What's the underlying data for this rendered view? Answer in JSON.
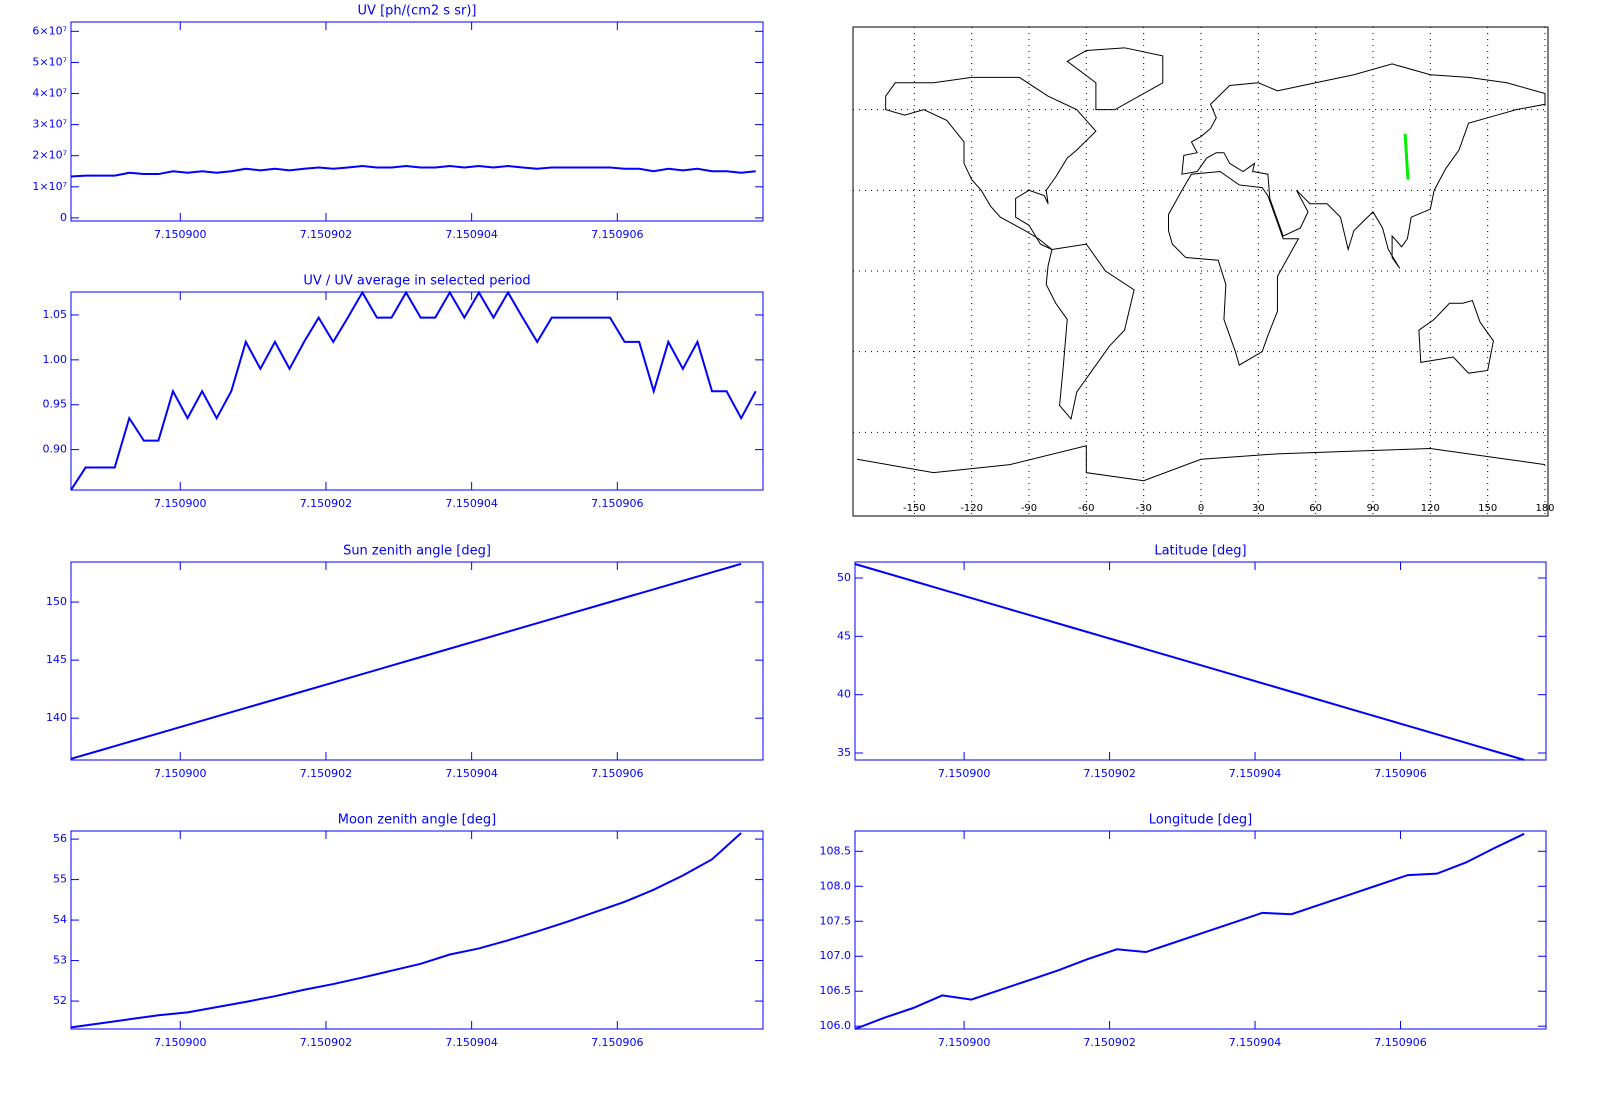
{
  "chart_data": [
    {
      "type": "line",
      "title": "UV [ph/(cm2 s sr)]",
      "color": "#0000ff",
      "step": true,
      "x": [
        7.1508985,
        7.1508987,
        7.1508989,
        7.1508991,
        7.1508993,
        7.1508995,
        7.1508997,
        7.1508999,
        7.1509001,
        7.1509003,
        7.1509005,
        7.1509007,
        7.1509009,
        7.1509011,
        7.1509013,
        7.1509015,
        7.1509017,
        7.1509019,
        7.1509021,
        7.1509023,
        7.1509025,
        7.1509027,
        7.1509029,
        7.1509031,
        7.1509033,
        7.1509035,
        7.1509037,
        7.1509039,
        7.1509041,
        7.1509043,
        7.1509045,
        7.1509047,
        7.1509049,
        7.1509051,
        7.1509053,
        7.1509055,
        7.1509057,
        7.1509059,
        7.1509061,
        7.1509063,
        7.1509065,
        7.1509067,
        7.1509069,
        7.1509071,
        7.1509073,
        7.1509075,
        7.1509077,
        7.1509079
      ],
      "values": [
        13300000,
        13600000,
        13600000,
        13600000,
        14500000,
        14100000,
        14100000,
        15000000,
        14500000,
        15000000,
        14500000,
        15000000,
        15800000,
        15300000,
        15800000,
        15300000,
        15800000,
        16200000,
        15800000,
        16200000,
        16700000,
        16200000,
        16200000,
        16700000,
        16200000,
        16200000,
        16700000,
        16200000,
        16700000,
        16200000,
        16700000,
        16200000,
        15800000,
        16200000,
        16200000,
        16200000,
        16200000,
        16200000,
        15800000,
        15800000,
        15000000,
        15800000,
        15300000,
        15800000,
        15000000,
        15000000,
        14500000,
        15000000
      ],
      "xlim": [
        7.1508985,
        7.150908
      ],
      "xticks": [
        {
          "value": 7.1509,
          "label": "7.150900"
        },
        {
          "value": 7.150902,
          "label": "7.150902"
        },
        {
          "value": 7.150904,
          "label": "7.150904"
        },
        {
          "value": 7.150906,
          "label": "7.150906"
        }
      ],
      "ylim": [
        -1000000,
        63000000
      ],
      "yticks": [
        0,
        {
          "value": 10000000,
          "label": "1×10⁷"
        },
        {
          "value": 20000000,
          "label": "2×10⁷"
        },
        {
          "value": 30000000,
          "label": "3×10⁷"
        },
        {
          "value": 40000000,
          "label": "4×10⁷"
        },
        {
          "value": 50000000,
          "label": "5×10⁷"
        },
        {
          "value": 60000000,
          "label": "6×10⁷"
        }
      ]
    },
    {
      "type": "line",
      "title": "UV / UV average in selected period",
      "color": "#0000ff",
      "x": [
        7.1508985,
        7.1508987,
        7.1508989,
        7.1508991,
        7.1508993,
        7.1508995,
        7.1508997,
        7.1508999,
        7.1509001,
        7.1509003,
        7.1509005,
        7.1509007,
        7.1509009,
        7.1509011,
        7.1509013,
        7.1509015,
        7.1509017,
        7.1509019,
        7.1509021,
        7.1509023,
        7.1509025,
        7.1509027,
        7.1509029,
        7.1509031,
        7.1509033,
        7.1509035,
        7.1509037,
        7.1509039,
        7.1509041,
        7.1509043,
        7.1509045,
        7.1509047,
        7.1509049,
        7.1509051,
        7.1509053,
        7.1509055,
        7.1509057,
        7.1509059,
        7.1509061,
        7.1509063,
        7.1509065,
        7.1509067,
        7.1509069,
        7.1509071,
        7.1509073,
        7.1509075,
        7.1509077,
        7.1509079
      ],
      "values": [
        0.855,
        0.88,
        0.88,
        0.88,
        0.935,
        0.91,
        0.91,
        0.965,
        0.935,
        0.965,
        0.935,
        0.965,
        1.02,
        0.99,
        1.02,
        0.99,
        1.02,
        1.047,
        1.02,
        1.047,
        1.075,
        1.047,
        1.047,
        1.075,
        1.047,
        1.047,
        1.075,
        1.047,
        1.075,
        1.047,
        1.075,
        1.047,
        1.02,
        1.047,
        1.047,
        1.047,
        1.047,
        1.047,
        1.02,
        1.02,
        0.965,
        1.02,
        0.99,
        1.02,
        0.965,
        0.965,
        0.935,
        0.965
      ],
      "xlim": [
        7.1508985,
        7.150908
      ],
      "xticks": [
        {
          "value": 7.1509,
          "label": "7.150900"
        },
        {
          "value": 7.150902,
          "label": "7.150902"
        },
        {
          "value": 7.150904,
          "label": "7.150904"
        },
        {
          "value": 7.150906,
          "label": "7.150906"
        }
      ],
      "ylim": [
        0.855,
        1.0756
      ],
      "yticks": [
        {
          "value": 0.9,
          "label": "0.90"
        },
        {
          "value": 0.95,
          "label": "0.95"
        },
        {
          "value": 1,
          "label": "1.00"
        },
        {
          "value": 1.05,
          "label": "1.05"
        }
      ]
    },
    {
      "type": "map",
      "color": "#00ee00",
      "grid": true,
      "x": [
        106.8,
        107.1,
        107.4,
        107.7,
        108.0,
        108.4
      ],
      "values": [
        51,
        47.6,
        44.2,
        40.8,
        37.4,
        34
      ],
      "xlim": [
        -180,
        180
      ],
      "ylim": [
        -90,
        90
      ],
      "xticks": [
        -150,
        -120,
        -90,
        -60,
        -30,
        0,
        30,
        60,
        90,
        120,
        150,
        180
      ],
      "ygrid": [
        -60,
        -30,
        0,
        30,
        60
      ]
    },
    {
      "type": "line",
      "title": "Sun zenith angle [deg]",
      "color": "#0000ff",
      "x": [
        7.1508985,
        7.1508989,
        7.1508993,
        7.1508997,
        7.1509001,
        7.1509005,
        7.1509009,
        7.1509013,
        7.1509017,
        7.1509021,
        7.1509025,
        7.1509029,
        7.1509033,
        7.1509037,
        7.1509041,
        7.1509045,
        7.1509049,
        7.1509053,
        7.1509057,
        7.1509061,
        7.1509065,
        7.1509069,
        7.1509073,
        7.1509077
      ],
      "values": [
        136.5,
        137.23,
        137.96,
        138.69,
        139.42,
        140.15,
        140.88,
        141.61,
        142.34,
        143.07,
        143.8,
        144.53,
        145.26,
        145.99,
        146.72,
        147.45,
        148.18,
        148.91,
        149.64,
        150.37,
        151.1,
        151.83,
        152.56,
        153.29
      ],
      "xlim": [
        7.1508985,
        7.150908
      ],
      "xticks": [
        {
          "value": 7.1509,
          "label": "7.150900"
        },
        {
          "value": 7.150902,
          "label": "7.150902"
        },
        {
          "value": 7.150904,
          "label": "7.150904"
        },
        {
          "value": 7.150906,
          "label": "7.150906"
        }
      ],
      "ylim": [
        136.4,
        153.45
      ],
      "yticks": [
        140,
        145,
        150
      ]
    },
    {
      "type": "line",
      "title": "Latitude [deg]",
      "color": "#0000ff",
      "x": [
        7.1508985,
        7.1508989,
        7.1508993,
        7.1508997,
        7.1509001,
        7.1509005,
        7.1509009,
        7.1509013,
        7.1509017,
        7.1509021,
        7.1509025,
        7.1509029,
        7.1509033,
        7.1509037,
        7.1509041,
        7.1509045,
        7.1509049,
        7.1509053,
        7.1509057,
        7.1509061,
        7.1509065,
        7.1509069,
        7.1509073,
        7.1509077
      ],
      "values": [
        51.2,
        50.47,
        49.74,
        49.01,
        48.28,
        47.55,
        46.82,
        46.09,
        45.36,
        44.63,
        43.9,
        43.17,
        42.44,
        41.71,
        40.98,
        40.25,
        39.52,
        38.79,
        38.06,
        37.33,
        36.6,
        35.87,
        35.14,
        34.41
      ],
      "xlim": [
        7.1508985,
        7.150908
      ],
      "xticks": [
        {
          "value": 7.1509,
          "label": "7.150900"
        },
        {
          "value": 7.150902,
          "label": "7.150902"
        },
        {
          "value": 7.150904,
          "label": "7.150904"
        },
        {
          "value": 7.150906,
          "label": "7.150906"
        }
      ],
      "ylim": [
        34.4,
        51.37
      ],
      "yticks": [
        35,
        40,
        45,
        50
      ]
    },
    {
      "type": "line",
      "title": "Moon zenith angle [deg]",
      "color": "#0000ff",
      "x": [
        7.1508985,
        7.1508989,
        7.1508993,
        7.1508997,
        7.1509001,
        7.1509005,
        7.1509009,
        7.1509013,
        7.1509017,
        7.1509021,
        7.1509025,
        7.1509029,
        7.1509033,
        7.1509037,
        7.1509041,
        7.1509045,
        7.1509049,
        7.1509053,
        7.1509057,
        7.1509061,
        7.1509065,
        7.1509069,
        7.1509073,
        7.1509077
      ],
      "values": [
        51.35,
        51.45,
        51.55,
        51.65,
        51.72,
        51.85,
        51.98,
        52.12,
        52.28,
        52.42,
        52.58,
        52.75,
        52.92,
        53.15,
        53.3,
        53.5,
        53.72,
        53.95,
        54.2,
        54.45,
        54.75,
        55.1,
        55.5,
        56.15
      ],
      "xlim": [
        7.1508985,
        7.150908
      ],
      "xticks": [
        {
          "value": 7.1509,
          "label": "7.150900"
        },
        {
          "value": 7.150902,
          "label": "7.150902"
        },
        {
          "value": 7.150904,
          "label": "7.150904"
        },
        {
          "value": 7.150906,
          "label": "7.150906"
        }
      ],
      "ylim": [
        51.31,
        56.2
      ],
      "yticks": [
        52,
        53,
        54,
        55,
        56
      ]
    },
    {
      "type": "line",
      "title": "Longitude [deg]",
      "color": "#0000ff",
      "x": [
        7.1508985,
        7.1508989,
        7.1508993,
        7.1508997,
        7.1509001,
        7.1509005,
        7.1509009,
        7.1509013,
        7.1509017,
        7.1509021,
        7.1509025,
        7.1509029,
        7.1509033,
        7.1509037,
        7.1509041,
        7.1509045,
        7.1509049,
        7.1509053,
        7.1509057,
        7.1509061,
        7.1509065,
        7.1509069,
        7.1509073,
        7.1509077
      ],
      "values": [
        105.96,
        106.12,
        106.26,
        106.44,
        106.38,
        106.52,
        106.66,
        106.8,
        106.96,
        107.1,
        107.06,
        107.2,
        107.34,
        107.48,
        107.62,
        107.6,
        107.74,
        107.88,
        108.02,
        108.16,
        108.18,
        108.34,
        108.55,
        108.75
      ],
      "xlim": [
        7.1508985,
        7.150908
      ],
      "xticks": [
        {
          "value": 7.1509,
          "label": "7.150900"
        },
        {
          "value": 7.150902,
          "label": "7.150902"
        },
        {
          "value": 7.150904,
          "label": "7.150904"
        },
        {
          "value": 7.150906,
          "label": "7.150906"
        }
      ],
      "ylim": [
        105.96,
        108.79
      ],
      "yticks": [
        {
          "value": 106,
          "label": "106.0"
        },
        {
          "value": 106.5,
          "label": "106.5"
        },
        {
          "value": 107,
          "label": "107.0"
        },
        {
          "value": 107.5,
          "label": "107.5"
        },
        {
          "value": 108,
          "label": "108.0"
        },
        {
          "value": 108.5,
          "label": "108.5"
        }
      ]
    }
  ]
}
